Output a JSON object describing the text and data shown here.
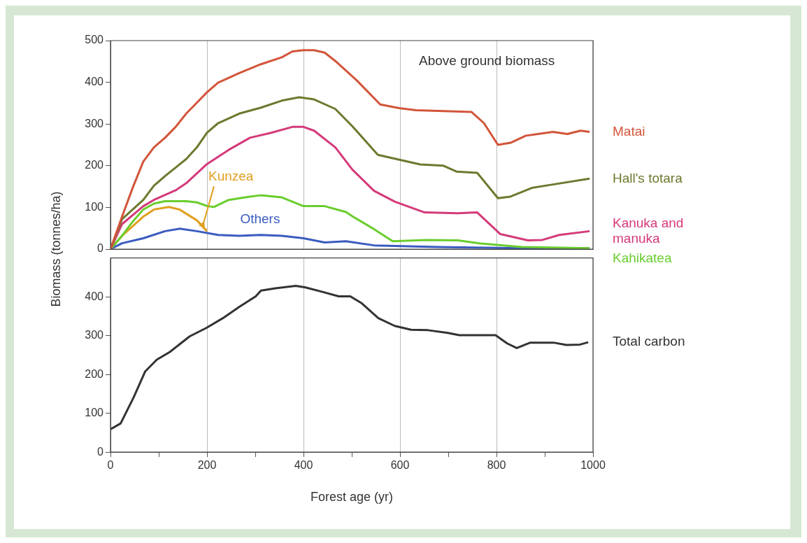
{
  "chart_data": [
    {
      "type": "line",
      "annotations": [
        "Above ground biomass"
      ],
      "ylabel": "Biomass (tonnes/ha)",
      "xlim": [
        0,
        1000
      ],
      "xticks": [
        0,
        200,
        400,
        600,
        800,
        1000
      ],
      "ylim": [
        0,
        500
      ],
      "yticks": [
        0,
        100,
        200,
        300,
        400,
        500
      ],
      "tick_labels": "y",
      "grid": "x",
      "series": [
        {
          "name": "Matai",
          "color": "#d2553a",
          "x": [
            0,
            24,
            46,
            68,
            90,
            113,
            135,
            157,
            179,
            200,
            223,
            267,
            311,
            355,
            377,
            400,
            422,
            444,
            466,
            488,
            510,
            559,
            598,
            633,
            748,
            774,
            803,
            829,
            861,
            917,
            947,
            974,
            993
          ],
          "values": [
            0,
            78,
            147,
            210,
            244,
            267,
            293,
            325,
            351,
            376,
            399,
            422,
            443,
            460,
            474,
            477,
            477,
            471,
            451,
            428,
            405,
            347,
            338,
            333,
            329,
            302,
            250,
            255,
            272,
            281,
            276,
            284,
            281
          ]
        },
        {
          "name": "Hall's totara",
          "color": "#6b7a2e",
          "x": [
            0,
            24,
            68,
            90,
            113,
            157,
            179,
            200,
            223,
            267,
            311,
            355,
            391,
            422,
            466,
            501,
            554,
            589,
            642,
            690,
            717,
            760,
            803,
            829,
            874,
            917,
            993
          ],
          "values": [
            0,
            72,
            118,
            152,
            175,
            216,
            244,
            279,
            302,
            325,
            339,
            356,
            364,
            359,
            336,
            295,
            226,
            217,
            203,
            200,
            186,
            183,
            122,
            126,
            147,
            155,
            169
          ]
        },
        {
          "name": "Kanuka and manuka",
          "color": "#d43a7a",
          "x": [
            0,
            24,
            68,
            90,
            135,
            157,
            200,
            245,
            289,
            333,
            377,
            400,
            422,
            466,
            501,
            546,
            589,
            651,
            720,
            760,
            808,
            865,
            895,
            930,
            993
          ],
          "values": [
            0,
            60,
            103,
            118,
            141,
            158,
            204,
            238,
            267,
            279,
            293,
            293,
            284,
            244,
            191,
            140,
            114,
            88,
            86,
            88,
            36,
            21,
            22,
            34,
            43
          ]
        },
        {
          "name": "Kahikatea",
          "color": "#6acd2e",
          "x": [
            0,
            24,
            46,
            68,
            90,
            113,
            157,
            179,
            201,
            214,
            245,
            289,
            311,
            355,
            400,
            444,
            488,
            501,
            546,
            585,
            655,
            720,
            764,
            852,
            993
          ],
          "values": [
            0,
            32,
            66,
            95,
            109,
            115,
            115,
            112,
            103,
            101,
            118,
            126,
            129,
            124,
            103,
            103,
            89,
            79,
            48,
            19,
            22,
            21,
            14,
            5,
            2
          ]
        },
        {
          "name": "Kunzea",
          "color": "#e0a020",
          "x": [
            0,
            24,
            68,
            90,
            121,
            143,
            179,
            200
          ],
          "values": [
            0,
            32,
            78,
            95,
            101,
            95,
            69,
            43
          ]
        },
        {
          "name": "Others",
          "color": "#3a5bc0",
          "x": [
            0,
            24,
            68,
            113,
            143,
            179,
            223,
            267,
            311,
            355,
            400,
            444,
            488,
            546,
            677,
            852,
            993
          ],
          "values": [
            0,
            14,
            26,
            43,
            49,
            43,
            34,
            32,
            34,
            32,
            26,
            16,
            19,
            9,
            5,
            2,
            2
          ]
        }
      ]
    },
    {
      "type": "line",
      "xlabel": "Forest age (yr)",
      "xlim": [
        0,
        1000
      ],
      "xticks": [
        0,
        {
          "value": 100,
          "label": null
        },
        200,
        {
          "value": 300,
          "label": null
        },
        400,
        {
          "value": 500,
          "label": null
        },
        600,
        {
          "value": 700,
          "label": null
        },
        800,
        {
          "value": 900,
          "label": null
        },
        1000
      ],
      "ylim": [
        0,
        500
      ],
      "yticks": [
        0,
        100,
        200,
        300,
        400
      ],
      "grid": "x",
      "series": [
        {
          "name": "Total carbon",
          "color": "#333333",
          "x": [
            0,
            21,
            48,
            72,
            96,
            123,
            164,
            199,
            233,
            267,
            301,
            312,
            342,
            384,
            404,
            438,
            473,
            497,
            521,
            555,
            589,
            623,
            658,
            699,
            723,
            798,
            822,
            842,
            870,
            918,
            945,
            973,
            990
          ],
          "values": [
            59,
            74,
            141,
            208,
            238,
            258,
            298,
            320,
            345,
            374,
            401,
            416,
            422,
            428,
            424,
            413,
            401,
            401,
            383,
            345,
            325,
            315,
            314,
            307,
            301,
            301,
            280,
            268,
            282,
            282,
            276,
            277,
            283
          ]
        }
      ]
    }
  ]
}
